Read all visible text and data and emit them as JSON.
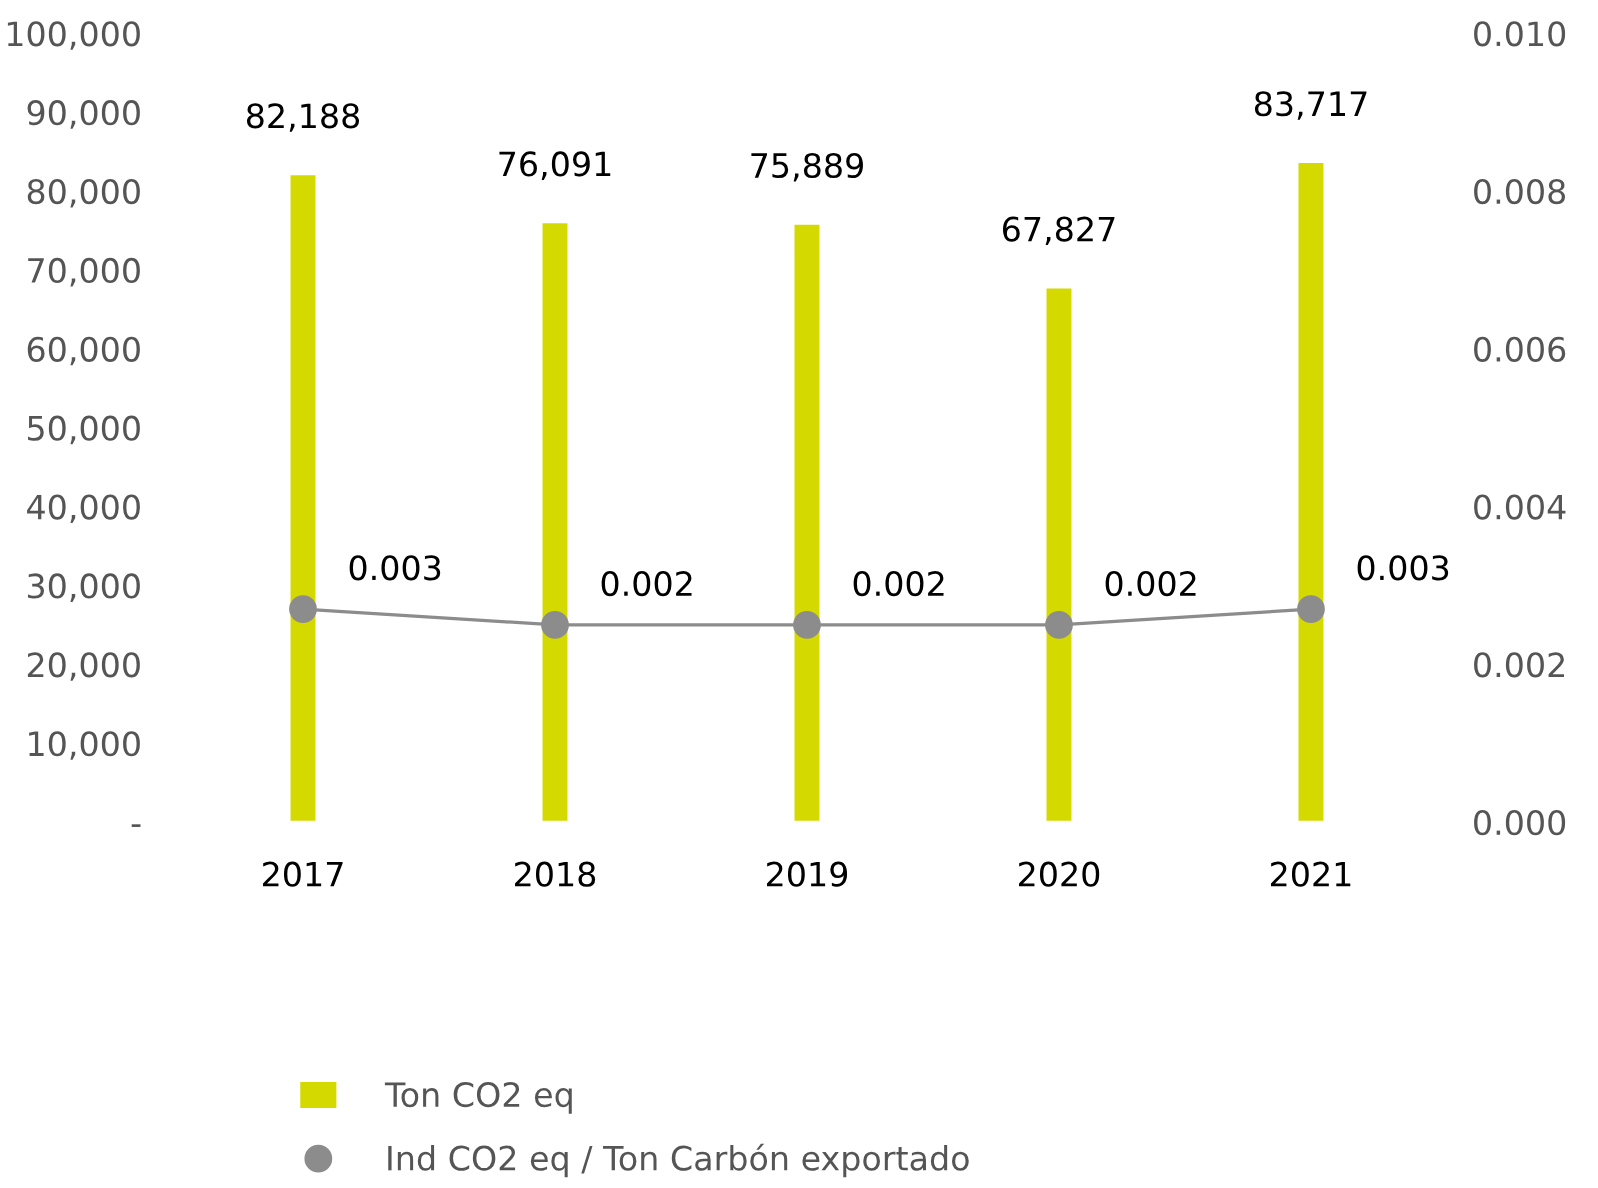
{
  "chart_data": {
    "type": "bar",
    "categories": [
      "2017",
      "2018",
      "2019",
      "2020",
      "2021"
    ],
    "series": [
      {
        "name": "Ton CO2 eq",
        "color": "#d4d900",
        "values": [
          82188,
          76091,
          75889,
          67827,
          83717
        ],
        "value_labels": [
          "82,188",
          "76,091",
          "75,889",
          "67,827",
          "83,717"
        ]
      },
      {
        "name": "Ind CO2 eq / Ton Carbón exportado",
        "type": "line",
        "axis": "y2",
        "color": "#8c8c8c",
        "values": [
          0.0027,
          0.0025,
          0.0025,
          0.0025,
          0.0027
        ],
        "value_labels": [
          "0.003",
          "0.002",
          "0.002",
          "0.002",
          "0.003"
        ]
      }
    ],
    "ylim": [
      0,
      100000
    ],
    "yticks": [
      {
        "value": 0,
        "label": "-"
      },
      {
        "value": 10000,
        "label": "10,000"
      },
      {
        "value": 20000,
        "label": "20,000"
      },
      {
        "value": 30000,
        "label": "30,000"
      },
      {
        "value": 40000,
        "label": "40,000"
      },
      {
        "value": 50000,
        "label": "50,000"
      },
      {
        "value": 60000,
        "label": "60,000"
      },
      {
        "value": 70000,
        "label": "70,000"
      },
      {
        "value": 80000,
        "label": "80,000"
      },
      {
        "value": 90000,
        "label": "90,000"
      },
      {
        "value": 100000,
        "label": "100,000"
      }
    ],
    "y2lim": [
      0,
      0.01
    ],
    "y2ticks": [
      {
        "value": 0,
        "label": "0.000"
      },
      {
        "value": 0.002,
        "label": "0.002"
      },
      {
        "value": 0.004,
        "label": "0.004"
      },
      {
        "value": 0.006,
        "label": "0.006"
      },
      {
        "value": 0.008,
        "label": "0.008"
      },
      {
        "value": 0.01,
        "label": "0.010"
      }
    ],
    "marker": "circle",
    "line_style": "solid",
    "grid": false,
    "legend": "bottom"
  }
}
